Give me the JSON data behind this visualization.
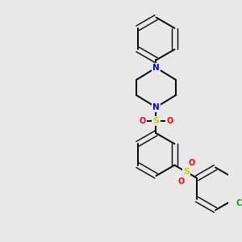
{
  "background_color": "#e8e8e8",
  "bond_color": "#000000",
  "N_color": "#0000ff",
  "O_color": "#ff0000",
  "S_color": "#cccc00",
  "Cl_color": "#228822",
  "figsize": [
    3.0,
    3.0
  ],
  "dpi": 100,
  "xlim": [
    0,
    300
  ],
  "ylim": [
    0,
    300
  ],
  "lw": 1.4,
  "lw_double": 1.0,
  "ring_r": 28,
  "font_S": 8,
  "font_O": 7,
  "font_N": 7.5,
  "font_Cl": 7
}
